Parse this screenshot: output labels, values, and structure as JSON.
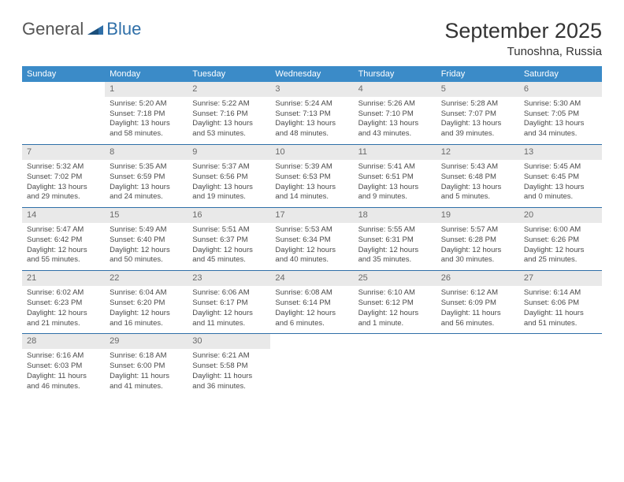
{
  "brand": {
    "part1": "General",
    "part2": "Blue"
  },
  "title": "September 2025",
  "location": "Tunoshna, Russia",
  "colors": {
    "header_bg": "#3b8bc8",
    "header_text": "#ffffff",
    "daynum_bg": "#e9e9e9",
    "daynum_text": "#6a6a6a",
    "rule": "#2f6fa8",
    "body_text": "#4a4a4a",
    "page_bg": "#ffffff"
  },
  "typography": {
    "title_fontsize": 27,
    "location_fontsize": 15,
    "dow_fontsize": 11,
    "daynum_fontsize": 11,
    "cell_fontsize": 9.5
  },
  "days_of_week": [
    "Sunday",
    "Monday",
    "Tuesday",
    "Wednesday",
    "Thursday",
    "Friday",
    "Saturday"
  ],
  "weeks": [
    [
      null,
      {
        "n": "1",
        "sr": "Sunrise: 5:20 AM",
        "ss": "Sunset: 7:18 PM",
        "d1": "Daylight: 13 hours",
        "d2": "and 58 minutes."
      },
      {
        "n": "2",
        "sr": "Sunrise: 5:22 AM",
        "ss": "Sunset: 7:16 PM",
        "d1": "Daylight: 13 hours",
        "d2": "and 53 minutes."
      },
      {
        "n": "3",
        "sr": "Sunrise: 5:24 AM",
        "ss": "Sunset: 7:13 PM",
        "d1": "Daylight: 13 hours",
        "d2": "and 48 minutes."
      },
      {
        "n": "4",
        "sr": "Sunrise: 5:26 AM",
        "ss": "Sunset: 7:10 PM",
        "d1": "Daylight: 13 hours",
        "d2": "and 43 minutes."
      },
      {
        "n": "5",
        "sr": "Sunrise: 5:28 AM",
        "ss": "Sunset: 7:07 PM",
        "d1": "Daylight: 13 hours",
        "d2": "and 39 minutes."
      },
      {
        "n": "6",
        "sr": "Sunrise: 5:30 AM",
        "ss": "Sunset: 7:05 PM",
        "d1": "Daylight: 13 hours",
        "d2": "and 34 minutes."
      }
    ],
    [
      {
        "n": "7",
        "sr": "Sunrise: 5:32 AM",
        "ss": "Sunset: 7:02 PM",
        "d1": "Daylight: 13 hours",
        "d2": "and 29 minutes."
      },
      {
        "n": "8",
        "sr": "Sunrise: 5:35 AM",
        "ss": "Sunset: 6:59 PM",
        "d1": "Daylight: 13 hours",
        "d2": "and 24 minutes."
      },
      {
        "n": "9",
        "sr": "Sunrise: 5:37 AM",
        "ss": "Sunset: 6:56 PM",
        "d1": "Daylight: 13 hours",
        "d2": "and 19 minutes."
      },
      {
        "n": "10",
        "sr": "Sunrise: 5:39 AM",
        "ss": "Sunset: 6:53 PM",
        "d1": "Daylight: 13 hours",
        "d2": "and 14 minutes."
      },
      {
        "n": "11",
        "sr": "Sunrise: 5:41 AM",
        "ss": "Sunset: 6:51 PM",
        "d1": "Daylight: 13 hours",
        "d2": "and 9 minutes."
      },
      {
        "n": "12",
        "sr": "Sunrise: 5:43 AM",
        "ss": "Sunset: 6:48 PM",
        "d1": "Daylight: 13 hours",
        "d2": "and 5 minutes."
      },
      {
        "n": "13",
        "sr": "Sunrise: 5:45 AM",
        "ss": "Sunset: 6:45 PM",
        "d1": "Daylight: 13 hours",
        "d2": "and 0 minutes."
      }
    ],
    [
      {
        "n": "14",
        "sr": "Sunrise: 5:47 AM",
        "ss": "Sunset: 6:42 PM",
        "d1": "Daylight: 12 hours",
        "d2": "and 55 minutes."
      },
      {
        "n": "15",
        "sr": "Sunrise: 5:49 AM",
        "ss": "Sunset: 6:40 PM",
        "d1": "Daylight: 12 hours",
        "d2": "and 50 minutes."
      },
      {
        "n": "16",
        "sr": "Sunrise: 5:51 AM",
        "ss": "Sunset: 6:37 PM",
        "d1": "Daylight: 12 hours",
        "d2": "and 45 minutes."
      },
      {
        "n": "17",
        "sr": "Sunrise: 5:53 AM",
        "ss": "Sunset: 6:34 PM",
        "d1": "Daylight: 12 hours",
        "d2": "and 40 minutes."
      },
      {
        "n": "18",
        "sr": "Sunrise: 5:55 AM",
        "ss": "Sunset: 6:31 PM",
        "d1": "Daylight: 12 hours",
        "d2": "and 35 minutes."
      },
      {
        "n": "19",
        "sr": "Sunrise: 5:57 AM",
        "ss": "Sunset: 6:28 PM",
        "d1": "Daylight: 12 hours",
        "d2": "and 30 minutes."
      },
      {
        "n": "20",
        "sr": "Sunrise: 6:00 AM",
        "ss": "Sunset: 6:26 PM",
        "d1": "Daylight: 12 hours",
        "d2": "and 25 minutes."
      }
    ],
    [
      {
        "n": "21",
        "sr": "Sunrise: 6:02 AM",
        "ss": "Sunset: 6:23 PM",
        "d1": "Daylight: 12 hours",
        "d2": "and 21 minutes."
      },
      {
        "n": "22",
        "sr": "Sunrise: 6:04 AM",
        "ss": "Sunset: 6:20 PM",
        "d1": "Daylight: 12 hours",
        "d2": "and 16 minutes."
      },
      {
        "n": "23",
        "sr": "Sunrise: 6:06 AM",
        "ss": "Sunset: 6:17 PM",
        "d1": "Daylight: 12 hours",
        "d2": "and 11 minutes."
      },
      {
        "n": "24",
        "sr": "Sunrise: 6:08 AM",
        "ss": "Sunset: 6:14 PM",
        "d1": "Daylight: 12 hours",
        "d2": "and 6 minutes."
      },
      {
        "n": "25",
        "sr": "Sunrise: 6:10 AM",
        "ss": "Sunset: 6:12 PM",
        "d1": "Daylight: 12 hours",
        "d2": "and 1 minute."
      },
      {
        "n": "26",
        "sr": "Sunrise: 6:12 AM",
        "ss": "Sunset: 6:09 PM",
        "d1": "Daylight: 11 hours",
        "d2": "and 56 minutes."
      },
      {
        "n": "27",
        "sr": "Sunrise: 6:14 AM",
        "ss": "Sunset: 6:06 PM",
        "d1": "Daylight: 11 hours",
        "d2": "and 51 minutes."
      }
    ],
    [
      {
        "n": "28",
        "sr": "Sunrise: 6:16 AM",
        "ss": "Sunset: 6:03 PM",
        "d1": "Daylight: 11 hours",
        "d2": "and 46 minutes."
      },
      {
        "n": "29",
        "sr": "Sunrise: 6:18 AM",
        "ss": "Sunset: 6:00 PM",
        "d1": "Daylight: 11 hours",
        "d2": "and 41 minutes."
      },
      {
        "n": "30",
        "sr": "Sunrise: 6:21 AM",
        "ss": "Sunset: 5:58 PM",
        "d1": "Daylight: 11 hours",
        "d2": "and 36 minutes."
      },
      null,
      null,
      null,
      null
    ]
  ]
}
